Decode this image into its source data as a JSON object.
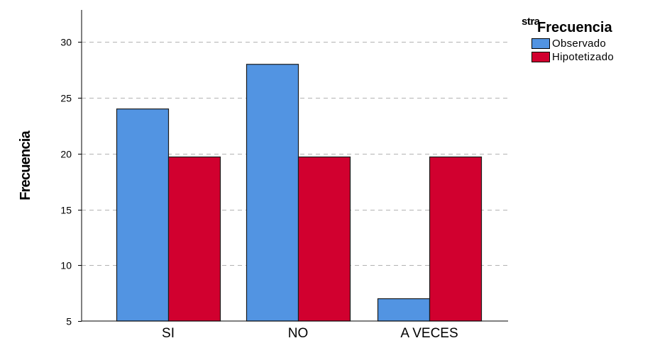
{
  "chart_data": {
    "type": "bar",
    "categories": [
      "SI",
      "NO",
      "A VECES"
    ],
    "series": [
      {
        "name": "Observado",
        "color": "#5294e2",
        "values": [
          24,
          28,
          7
        ]
      },
      {
        "name": "Hipotetizado",
        "color": "#d1002f",
        "values": [
          19.7,
          19.7,
          19.7
        ]
      }
    ],
    "ylabel": "Frecuencia",
    "xlabel": "",
    "ylim": [
      5,
      32
    ],
    "yticks": [
      5,
      10,
      15,
      20,
      25,
      30
    ],
    "grid": true,
    "legend": {
      "prefix": "stra",
      "title": "Frecuencia",
      "position": "top-right"
    }
  }
}
